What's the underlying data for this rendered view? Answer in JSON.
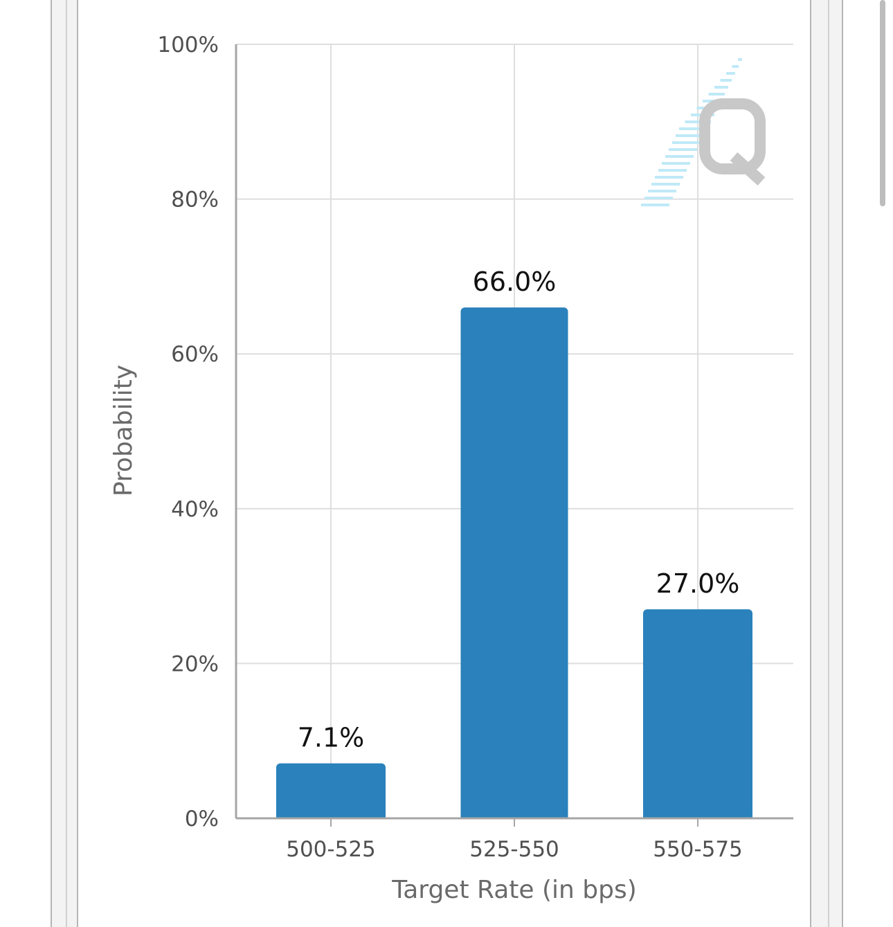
{
  "chart_data": {
    "type": "bar",
    "categories": [
      "500-525",
      "525-550",
      "550-575"
    ],
    "values": [
      7.1,
      66.0,
      27.0
    ],
    "data_labels": [
      "7.1%",
      "66.0%",
      "27.0%"
    ],
    "title": "",
    "xlabel": "Target Rate (in bps)",
    "ylabel": "Probability",
    "ylim": [
      0,
      100
    ],
    "yticks": [
      0,
      20,
      40,
      60,
      80,
      100
    ],
    "ytick_labels": [
      "0%",
      "20%",
      "40%",
      "60%",
      "80%",
      "100%"
    ],
    "grid": true,
    "bar_color": "#2a81bb"
  },
  "colors": {
    "grid": "#dedede",
    "axis": "#a6a6a6",
    "watermark_q": "#c8c8c8",
    "watermark_lines": "#bfe9f7"
  },
  "icons": {
    "watermark": "q-logo-watermark-icon"
  }
}
